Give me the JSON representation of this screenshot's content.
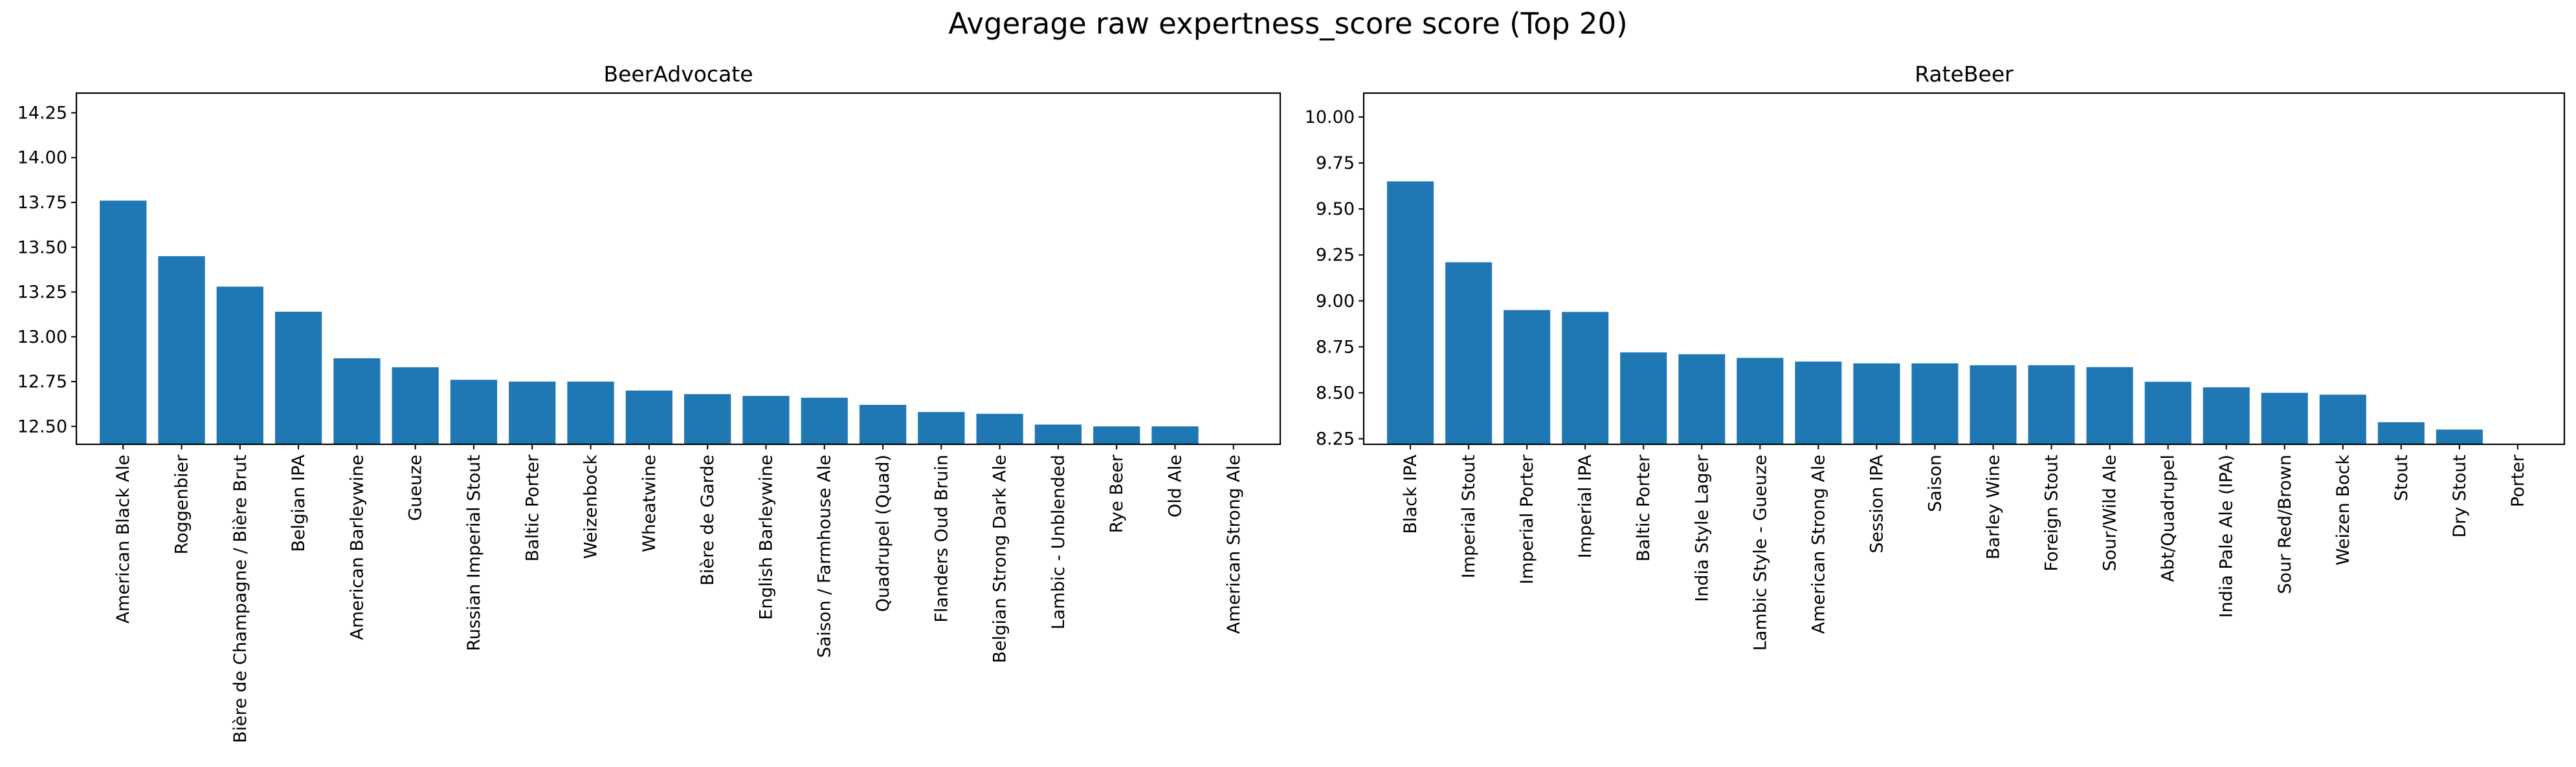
{
  "figure_title": "Avgerage raw expertness_score score (Top 20)",
  "chart_data": [
    {
      "type": "bar",
      "title": "BeerAdvocate",
      "xlabel": "",
      "ylabel": "",
      "ylim": [
        12.4,
        14.36
      ],
      "yticks": [
        12.5,
        12.75,
        13.0,
        13.25,
        13.5,
        13.75,
        14.0,
        14.25
      ],
      "ytick_labels": [
        "12.50",
        "12.75",
        "13.00",
        "13.25",
        "13.50",
        "13.75",
        "14.00",
        "14.25"
      ],
      "bar_color": "#1f77b4",
      "grid": false,
      "categories": [
        "American Black Ale",
        "Roggenbier",
        "Bière de Champagne / Bière Brut",
        "Belgian IPA",
        "American Barleywine",
        "Gueuze",
        "Russian Imperial Stout",
        "Baltic Porter",
        "Weizenbock",
        "Wheatwine",
        "Bière de Garde",
        "English Barleywine",
        "Saison / Farmhouse Ale",
        "Quadrupel (Quad)",
        "Flanders Oud Bruin",
        "Belgian Strong Dark Ale",
        "Lambic - Unblended",
        "Rye Beer",
        "Old Ale",
        "American Strong Ale"
      ],
      "values": [
        13.76,
        13.45,
        13.28,
        13.14,
        12.88,
        12.83,
        12.76,
        12.75,
        12.75,
        12.7,
        12.68,
        12.67,
        12.66,
        12.62,
        12.58,
        12.57,
        12.51,
        12.5,
        12.5,
        12.4
      ]
    },
    {
      "type": "bar",
      "title": "RateBeer",
      "xlabel": "",
      "ylabel": "",
      "ylim": [
        8.22,
        10.13
      ],
      "yticks": [
        8.25,
        8.5,
        8.75,
        9.0,
        9.25,
        9.5,
        9.75,
        10.0
      ],
      "ytick_labels": [
        "8.25",
        "8.50",
        "8.75",
        "9.00",
        "9.25",
        "9.50",
        "9.75",
        "10.00"
      ],
      "bar_color": "#1f77b4",
      "grid": false,
      "categories": [
        "Black IPA",
        "Imperial Stout",
        "Imperial Porter",
        "Imperial IPA",
        "Baltic Porter",
        "India Style Lager",
        "Lambic Style - Gueuze",
        "American Strong Ale",
        "Session IPA",
        "Saison",
        "Barley Wine",
        "Foreign Stout",
        "Sour/Wild Ale",
        "Abt/Quadrupel",
        "India Pale Ale (IPA)",
        "Sour Red/Brown",
        "Weizen Bock",
        "Stout",
        "Dry Stout",
        "Porter"
      ],
      "values": [
        9.65,
        9.21,
        8.95,
        8.94,
        8.72,
        8.71,
        8.69,
        8.67,
        8.66,
        8.66,
        8.65,
        8.65,
        8.64,
        8.56,
        8.53,
        8.5,
        8.49,
        8.34,
        8.3,
        8.22
      ]
    }
  ]
}
